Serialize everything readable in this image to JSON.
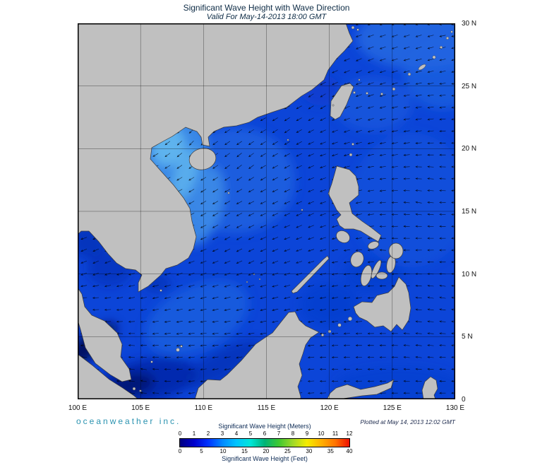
{
  "header": {
    "title": "Significant Wave Height with Wave Direction",
    "subtitle": "Valid For May-14-2013 18:00 GMT"
  },
  "footer": {
    "brand": "oceanweather inc.",
    "plotted": "Plotted at May 14, 2013 12:02 GMT"
  },
  "axes": {
    "lon_ticks": [
      {
        "deg": 100,
        "label": "100 E"
      },
      {
        "deg": 105,
        "label": "105 E"
      },
      {
        "deg": 110,
        "label": "110 E"
      },
      {
        "deg": 115,
        "label": "115 E"
      },
      {
        "deg": 120,
        "label": "120 E"
      },
      {
        "deg": 125,
        "label": "125 E"
      },
      {
        "deg": 130,
        "label": "130 E"
      }
    ],
    "lat_ticks": [
      {
        "deg": 0,
        "label": "0"
      },
      {
        "deg": 5,
        "label": "5 N"
      },
      {
        "deg": 10,
        "label": "10 N"
      },
      {
        "deg": 15,
        "label": "15 N"
      },
      {
        "deg": 20,
        "label": "20 N"
      },
      {
        "deg": 25,
        "label": "25 N"
      },
      {
        "deg": 30,
        "label": "30 N"
      }
    ]
  },
  "legend": {
    "title_meters": "Significant Wave Height (Meters)",
    "title_feet": "Significant Wave Height (Feet)",
    "meters_ticks": [
      0,
      1,
      2,
      3,
      4,
      5,
      6,
      7,
      8,
      9,
      10,
      11,
      12
    ],
    "feet_ticks": [
      0,
      5,
      10,
      15,
      20,
      25,
      30,
      35,
      40
    ],
    "colors": [
      "#000080",
      "#0000cc",
      "#0033ff",
      "#0088ff",
      "#00c4ff",
      "#00e6d8",
      "#00b377",
      "#3ec832",
      "#a0d928",
      "#f5ec00",
      "#ffb100",
      "#ff7300",
      "#f01000"
    ]
  },
  "map": {
    "extent": {
      "lon_min": 100,
      "lon_max": 130,
      "lat_min": 0,
      "lat_max": 30
    },
    "colors": {
      "land": "#c0c0c0",
      "coast": "#3c3c3c",
      "grid": "#000000",
      "frame": "#000000",
      "arrow": "#000000",
      "ocean_navy": "#02105c",
      "ocean_dark": "#0626a8",
      "ocean_base_dark": "#0a3ccc",
      "ocean_base": "#0c45d8",
      "ocean_light1": "#2166e0",
      "ocean_light2": "#3f8fe8",
      "ocean_cyan": "#63b8ee",
      "ocean_cyan_light": "#86d2f4"
    },
    "arrow_field": [
      [
        127,
        28.5,
        198
      ],
      [
        122.5,
        27,
        205
      ],
      [
        126,
        22,
        190
      ],
      [
        128,
        18,
        172
      ],
      [
        127,
        15.5,
        168
      ],
      [
        124.5,
        12,
        175
      ],
      [
        123,
        18,
        188
      ],
      [
        121.5,
        21.5,
        200
      ],
      [
        119,
        24,
        215
      ],
      [
        116.5,
        21.5,
        215
      ],
      [
        113,
        19,
        222
      ],
      [
        109,
        20.5,
        228
      ],
      [
        110,
        16,
        212
      ],
      [
        112.5,
        13,
        212
      ],
      [
        109.5,
        10,
        200
      ],
      [
        107,
        6.5,
        190
      ],
      [
        103,
        4.5,
        172
      ],
      [
        101.3,
        11,
        205
      ],
      [
        101,
        7.5,
        182
      ],
      [
        110.5,
        5,
        185
      ],
      [
        113.5,
        6.5,
        190
      ],
      [
        116,
        8.5,
        195
      ],
      [
        120,
        8,
        188
      ],
      [
        123,
        4,
        178
      ],
      [
        127,
        3.5,
        172
      ],
      [
        118,
        14.5,
        205
      ],
      [
        120.8,
        17,
        198
      ],
      [
        128.5,
        8,
        168
      ],
      [
        129.5,
        20,
        178
      ],
      [
        124.5,
        25,
        196
      ],
      [
        128.5,
        24.5,
        186
      ],
      [
        105,
        2,
        168
      ],
      [
        120,
        2,
        180
      ],
      [
        114,
        11,
        208
      ],
      [
        117,
        18,
        210
      ],
      [
        125.5,
        28.5,
        200
      ],
      [
        129,
        28.5,
        192
      ]
    ]
  },
  "chart_data": {
    "type": "heatmap",
    "title": "Significant Wave Height with Wave Direction",
    "subtitle": "Valid For May-14-2013 18:00 GMT",
    "region_lon": [
      100,
      130
    ],
    "region_lat": [
      0,
      30
    ],
    "units": [
      "Meters",
      "Feet"
    ],
    "scale_meters": [
      0,
      12
    ],
    "scale_feet": [
      0,
      40
    ],
    "colorbar_colors": [
      "#000080",
      "#0000cc",
      "#0033ff",
      "#0088ff",
      "#00c4ff",
      "#00e6d8",
      "#00b377",
      "#3ec832",
      "#a0d928",
      "#f5ec00",
      "#ffb100",
      "#ff7300",
      "#f01000"
    ],
    "description": "Wave heights mostly 0.5-2.5 m; lighter (higher ~2-2.5 m) tongue along central Vietnam coast and Gulf of Tonkin; calmest (<0.5 m) dark navy water in Malacca Strait and near Sumatra; arrows show wave direction, generally westward in the Pacific and southwestward over the northern South China Sea."
  }
}
